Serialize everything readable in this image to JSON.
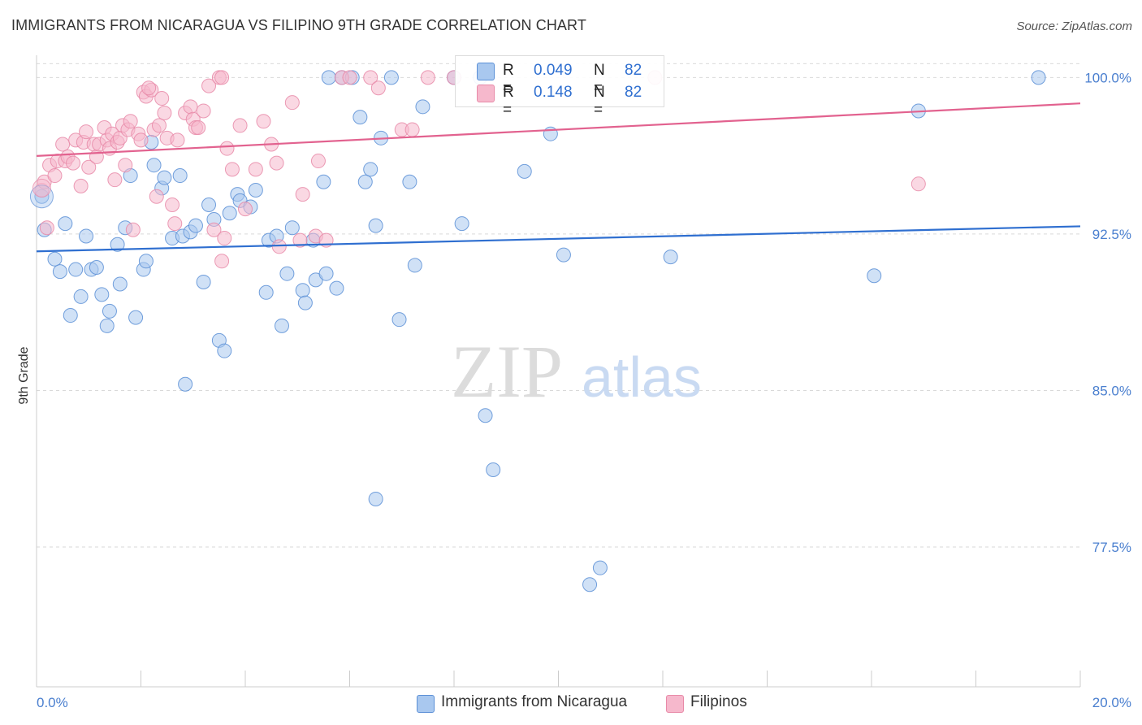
{
  "header": {
    "title": "IMMIGRANTS FROM NICARAGUA VS FILIPINO 9TH GRADE CORRELATION CHART",
    "source": "Source: ZipAtlas.com"
  },
  "watermark": {
    "zip": "ZIP",
    "atlas": "atlas"
  },
  "legend_top": {
    "rows": [
      {
        "r_label": "R =",
        "r_value": "0.049",
        "n_label": "N =",
        "n_value": "82"
      },
      {
        "r_label": "R =",
        "r_value": "0.148",
        "n_label": "N =",
        "n_value": "82"
      }
    ]
  },
  "legend_bottom": {
    "items": [
      {
        "label": "Immigrants from Nicaragua"
      },
      {
        "label": "Filipinos"
      }
    ]
  },
  "colors": {
    "blue_fill": "#a9c8ef",
    "blue_stroke": "#5b8fd6",
    "blue_line": "#2f6fd0",
    "pink_fill": "#f6b8cc",
    "pink_stroke": "#e88aa8",
    "pink_line": "#e2628f",
    "tick_text": "#4a7fcf",
    "grid": "#d9d9d9"
  },
  "chart_data": {
    "type": "scatter",
    "title": "IMMIGRANTS FROM NICARAGUA VS FILIPINO 9TH GRADE CORRELATION CHART",
    "xlabel": "",
    "ylabel": "9th Grade",
    "xlim": [
      0,
      20
    ],
    "ylim": [
      70.8,
      101.3
    ],
    "x_tick_labels": [
      "0.0%",
      "20.0%"
    ],
    "y_ticks": [
      100.0,
      92.5,
      85.0,
      77.5
    ],
    "y_tick_labels": [
      "100.0%",
      "92.5%",
      "85.0%",
      "77.5%"
    ],
    "grid": true,
    "legend": "top-center",
    "series": [
      {
        "name": "Immigrants from Nicaragua",
        "R": 0.049,
        "N": 82,
        "trend": {
          "x": [
            0,
            20
          ],
          "y": [
            91.67,
            92.87
          ]
        },
        "points": [
          [
            0.1,
            94.3
          ],
          [
            0.15,
            92.7
          ],
          [
            0.35,
            91.3
          ],
          [
            0.45,
            90.7
          ],
          [
            0.55,
            93.0
          ],
          [
            0.65,
            88.6
          ],
          [
            0.75,
            90.8
          ],
          [
            0.85,
            89.5
          ],
          [
            0.95,
            92.4
          ],
          [
            1.05,
            90.8
          ],
          [
            1.15,
            90.9
          ],
          [
            1.25,
            89.6
          ],
          [
            1.35,
            88.1
          ],
          [
            1.4,
            88.8
          ],
          [
            1.55,
            92.0
          ],
          [
            1.6,
            90.1
          ],
          [
            1.7,
            92.8
          ],
          [
            1.8,
            95.3
          ],
          [
            1.9,
            88.5
          ],
          [
            2.05,
            90.8
          ],
          [
            2.1,
            91.2
          ],
          [
            2.2,
            96.9
          ],
          [
            2.25,
            95.8
          ],
          [
            2.4,
            94.7
          ],
          [
            2.45,
            95.2
          ],
          [
            2.6,
            92.3
          ],
          [
            2.75,
            95.3
          ],
          [
            2.8,
            92.4
          ],
          [
            2.85,
            85.3
          ],
          [
            2.95,
            92.6
          ],
          [
            3.05,
            92.9
          ],
          [
            3.2,
            90.2
          ],
          [
            3.3,
            93.9
          ],
          [
            3.4,
            93.2
          ],
          [
            3.5,
            87.4
          ],
          [
            3.6,
            86.9
          ],
          [
            3.7,
            93.5
          ],
          [
            3.85,
            94.4
          ],
          [
            3.9,
            94.1
          ],
          [
            4.1,
            93.8
          ],
          [
            4.2,
            94.6
          ],
          [
            4.4,
            89.7
          ],
          [
            4.45,
            92.2
          ],
          [
            4.6,
            92.4
          ],
          [
            4.7,
            88.1
          ],
          [
            4.8,
            90.6
          ],
          [
            4.9,
            92.8
          ],
          [
            5.1,
            89.8
          ],
          [
            5.15,
            89.2
          ],
          [
            5.3,
            92.2
          ],
          [
            5.35,
            90.3
          ],
          [
            5.5,
            95.0
          ],
          [
            5.55,
            90.6
          ],
          [
            5.6,
            100.0
          ],
          [
            5.75,
            89.9
          ],
          [
            5.85,
            100.0
          ],
          [
            6.05,
            100.0
          ],
          [
            6.2,
            98.1
          ],
          [
            6.3,
            95.0
          ],
          [
            6.4,
            95.6
          ],
          [
            6.5,
            92.9
          ],
          [
            6.5,
            79.8
          ],
          [
            6.6,
            97.1
          ],
          [
            6.8,
            100.0
          ],
          [
            6.95,
            88.4
          ],
          [
            7.15,
            95.0
          ],
          [
            7.25,
            91.0
          ],
          [
            7.4,
            98.6
          ],
          [
            8.0,
            100.0
          ],
          [
            8.15,
            93.0
          ],
          [
            8.6,
            83.8
          ],
          [
            8.75,
            81.2
          ],
          [
            9.35,
            95.5
          ],
          [
            9.85,
            97.3
          ],
          [
            10.1,
            91.5
          ],
          [
            10.6,
            75.7
          ],
          [
            10.8,
            76.5
          ],
          [
            12.15,
            91.4
          ],
          [
            16.05,
            90.5
          ],
          [
            16.9,
            98.4
          ],
          [
            19.2,
            100.0
          ],
          [
            8.5,
            100.0
          ]
        ]
      },
      {
        "name": "Filipinos",
        "R": 0.148,
        "N": 82,
        "trend": {
          "x": [
            0,
            20
          ],
          "y": [
            96.24,
            98.76
          ]
        },
        "points": [
          [
            0.1,
            94.6
          ],
          [
            0.15,
            95.0
          ],
          [
            0.2,
            92.8
          ],
          [
            0.25,
            95.8
          ],
          [
            0.35,
            95.3
          ],
          [
            0.4,
            96.0
          ],
          [
            0.5,
            96.8
          ],
          [
            0.55,
            96.0
          ],
          [
            0.6,
            96.2
          ],
          [
            0.7,
            95.9
          ],
          [
            0.75,
            97.0
          ],
          [
            0.85,
            94.8
          ],
          [
            0.9,
            96.9
          ],
          [
            0.95,
            97.4
          ],
          [
            1.0,
            95.7
          ],
          [
            1.1,
            96.8
          ],
          [
            1.15,
            96.2
          ],
          [
            1.2,
            96.8
          ],
          [
            1.3,
            97.6
          ],
          [
            1.35,
            97.0
          ],
          [
            1.4,
            96.6
          ],
          [
            1.45,
            97.3
          ],
          [
            1.5,
            95.1
          ],
          [
            1.55,
            96.9
          ],
          [
            1.6,
            97.1
          ],
          [
            1.65,
            97.7
          ],
          [
            1.7,
            95.8
          ],
          [
            1.75,
            97.5
          ],
          [
            1.8,
            97.9
          ],
          [
            1.85,
            92.7
          ],
          [
            1.95,
            97.3
          ],
          [
            2.0,
            97.0
          ],
          [
            2.05,
            99.3
          ],
          [
            2.1,
            99.1
          ],
          [
            2.2,
            99.4
          ],
          [
            2.25,
            97.5
          ],
          [
            2.3,
            94.3
          ],
          [
            2.35,
            97.7
          ],
          [
            2.4,
            99.0
          ],
          [
            2.45,
            98.3
          ],
          [
            2.5,
            97.1
          ],
          [
            2.6,
            93.9
          ],
          [
            2.65,
            93.0
          ],
          [
            2.7,
            97.0
          ],
          [
            2.85,
            98.3
          ],
          [
            2.95,
            98.6
          ],
          [
            3.0,
            98.0
          ],
          [
            3.05,
            97.6
          ],
          [
            3.1,
            97.6
          ],
          [
            3.2,
            98.4
          ],
          [
            3.3,
            99.6
          ],
          [
            3.4,
            92.7
          ],
          [
            3.5,
            100.0
          ],
          [
            3.55,
            91.2
          ],
          [
            3.6,
            92.3
          ],
          [
            3.65,
            96.6
          ],
          [
            3.75,
            95.6
          ],
          [
            3.9,
            97.7
          ],
          [
            4.0,
            93.7
          ],
          [
            4.2,
            95.6
          ],
          [
            4.35,
            97.9
          ],
          [
            4.5,
            96.8
          ],
          [
            4.6,
            95.9
          ],
          [
            4.65,
            91.9
          ],
          [
            4.9,
            98.8
          ],
          [
            5.05,
            92.2
          ],
          [
            5.1,
            94.4
          ],
          [
            5.35,
            92.4
          ],
          [
            5.4,
            96.0
          ],
          [
            5.55,
            92.2
          ],
          [
            5.85,
            100.0
          ],
          [
            6.0,
            100.0
          ],
          [
            6.4,
            100.0
          ],
          [
            6.55,
            99.5
          ],
          [
            7.0,
            97.5
          ],
          [
            7.2,
            97.5
          ],
          [
            7.5,
            100.0
          ],
          [
            8.0,
            100.0
          ],
          [
            11.85,
            100.0
          ],
          [
            16.9,
            94.9
          ],
          [
            3.55,
            100.0
          ],
          [
            2.15,
            99.5
          ]
        ]
      }
    ]
  }
}
